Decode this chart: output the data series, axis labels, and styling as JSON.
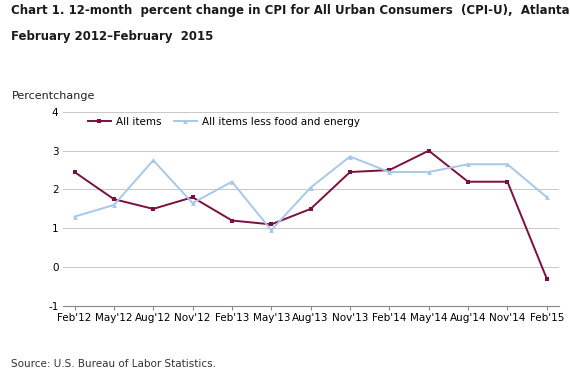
{
  "title_line1": "Chart 1. 12-month  percent change in CPI for All Urban Consumers  (CPI-U),  Atlanta,",
  "title_line2": "February 2012–February  2015",
  "ylabel": "Percentchange",
  "source": "Source: U.S. Bureau of Labor Statistics.",
  "x_labels": [
    "Feb'12",
    "May'12",
    "Aug'12",
    "Nov'12",
    "Feb'13",
    "May'13",
    "Aug'13",
    "Nov'13",
    "Feb'14",
    "May'14",
    "Aug'14",
    "Nov'14",
    "Feb'15"
  ],
  "all_items": [
    2.45,
    1.75,
    1.5,
    1.8,
    1.2,
    1.1,
    1.5,
    2.45,
    2.5,
    3.0,
    2.2,
    2.2,
    -0.3
  ],
  "all_items_less": [
    1.3,
    1.6,
    2.75,
    1.65,
    2.2,
    0.95,
    2.05,
    2.85,
    2.45,
    2.45,
    2.65,
    2.65,
    1.8
  ],
  "all_items_color": "#7B1040",
  "all_items_less_color": "#A8C8E8",
  "ylim": [
    -1,
    4
  ],
  "yticks": [
    -1,
    0,
    1,
    2,
    3,
    4
  ],
  "legend_all_items": "All items",
  "legend_all_items_less": "All items less food and energy",
  "title_fontsize": 8.5,
  "axis_fontsize": 7.5,
  "ylabel_fontsize": 8.0,
  "source_fontsize": 7.5
}
